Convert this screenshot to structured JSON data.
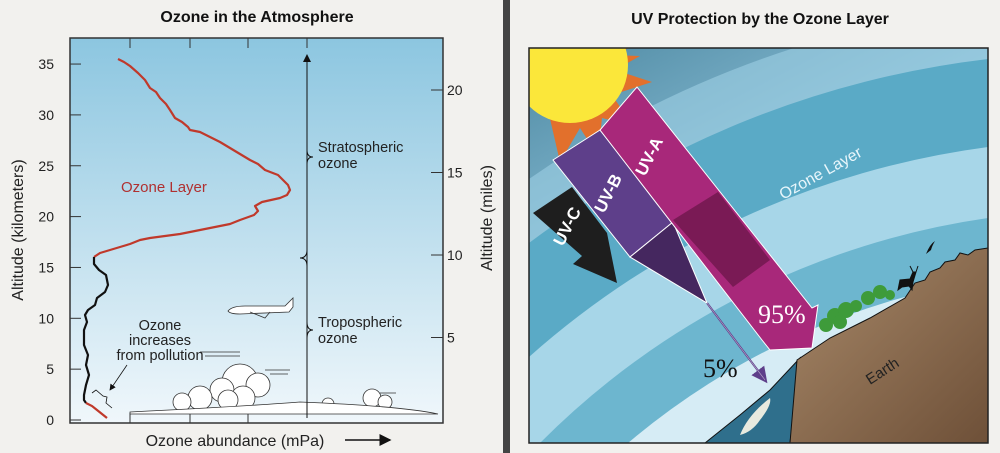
{
  "left": {
    "title": "Ozone in the Atmosphere",
    "ylabel_left": "Altitude (kilometers)",
    "ylabel_right": "Altitude (miles)",
    "xlabel": "Ozone abundance (mPa)",
    "km_ticks": [
      "0",
      "5",
      "10",
      "15",
      "20",
      "25",
      "30",
      "35"
    ],
    "mile_ticks": [
      "5",
      "10",
      "15",
      "20"
    ],
    "ozone_layer_label": "Ozone Layer",
    "stratospheric_label": [
      "Stratospheric",
      "ozone"
    ],
    "tropospheric_label": [
      "Tropospheric",
      "ozone"
    ],
    "pollution_label": [
      "Ozone",
      "increases",
      "from pollution"
    ],
    "colors": {
      "ozone_layer": "#c0392b",
      "troposphere": "#111111",
      "sky_top": "#8cc6e0",
      "sky_bottom": "#eef6fa"
    }
  },
  "right": {
    "title": "UV Protection by the Ozone Layer",
    "uv_c": "UV-C",
    "uv_b": "UV-B",
    "uv_a": "UV-A",
    "ozone_layer_label": "Ozone Layer",
    "pct_uva": "95%",
    "pct_uvb": "5%",
    "earth_label": "Earth",
    "colors": {
      "uv_a": "#a8287a",
      "uv_b": "#5e3f8a",
      "uv_c": "#1e1e1e",
      "sun": "#fbe73a",
      "sun_rays": "#e2702c",
      "ozone_band": "#5aaac6",
      "earth": "#8a6a50"
    }
  }
}
